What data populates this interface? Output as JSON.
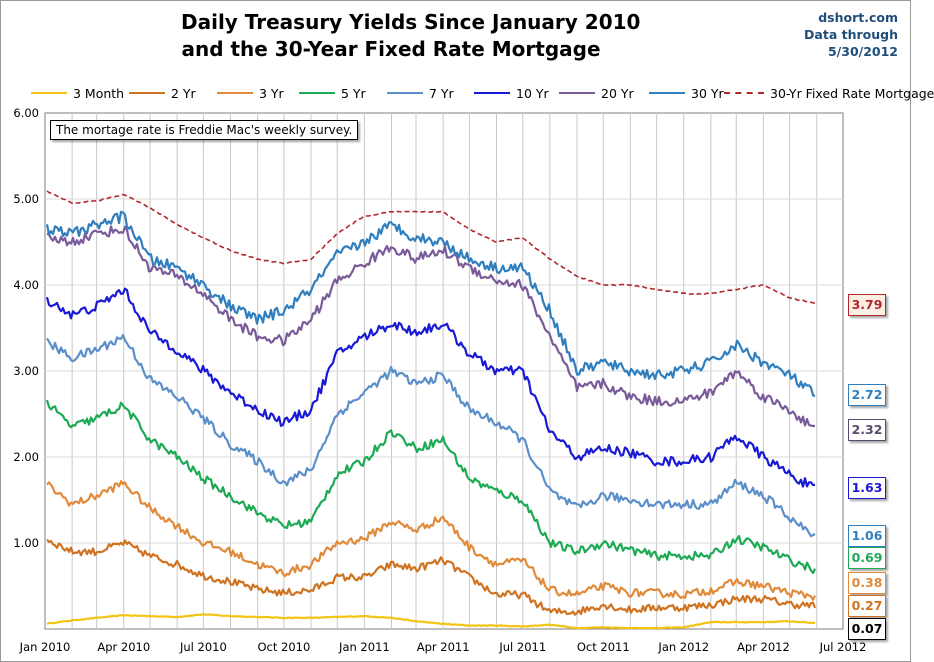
{
  "header": {
    "title_line1": "Daily Treasury Yields Since January 2010",
    "title_line2": "and the 30-Year Fixed Rate Mortgage",
    "source_line1": "dshort.com",
    "source_line2": "Data through",
    "source_line3": "5/30/2012"
  },
  "note": "The mortage rate is Freddie Mac's weekly survey.",
  "chart_data": {
    "type": "line",
    "title": "Daily Treasury Yields Since January 2010 and the 30-Year Fixed Rate Mortgage",
    "ylim": [
      0,
      6
    ],
    "y_ticks": [
      "6.00",
      "5.00",
      "4.00",
      "3.00",
      "2.00",
      "1.00"
    ],
    "y_tick_values": [
      6,
      5,
      4,
      3,
      2,
      1
    ],
    "x_ticks": [
      "Jan 2010",
      "Apr 2010",
      "Jul 2010",
      "Oct 2010",
      "Jan 2011",
      "Apr 2011",
      "Jul 2011",
      "Oct 2011",
      "Jan 2012",
      "Apr 2012",
      "Jul 2012"
    ],
    "x_tick_dates": [
      "2010-01-01",
      "2010-04-01",
      "2010-07-01",
      "2010-10-01",
      "2011-01-01",
      "2011-04-01",
      "2011-07-01",
      "2011-10-01",
      "2012-01-01",
      "2012-04-01",
      "2012-07-01"
    ],
    "grid": true,
    "legend_position": "top",
    "x": [
      "2010-01-01",
      "2010-02-01",
      "2010-03-01",
      "2010-04-01",
      "2010-05-01",
      "2010-06-01",
      "2010-07-01",
      "2010-08-01",
      "2010-09-01",
      "2010-10-01",
      "2010-11-01",
      "2010-12-01",
      "2011-01-01",
      "2011-02-01",
      "2011-03-01",
      "2011-04-01",
      "2011-05-01",
      "2011-06-01",
      "2011-07-01",
      "2011-08-01",
      "2011-09-01",
      "2011-10-01",
      "2011-11-01",
      "2011-12-01",
      "2012-01-01",
      "2012-02-01",
      "2012-03-01",
      "2012-04-01",
      "2012-05-01",
      "2012-05-30"
    ],
    "series": [
      {
        "name": "3 Month",
        "color": "#f2c413",
        "dash": "solid",
        "values": [
          0.06,
          0.1,
          0.13,
          0.16,
          0.15,
          0.14,
          0.17,
          0.15,
          0.14,
          0.13,
          0.13,
          0.14,
          0.15,
          0.13,
          0.09,
          0.06,
          0.04,
          0.04,
          0.03,
          0.05,
          0.01,
          0.02,
          0.01,
          0.01,
          0.02,
          0.08,
          0.08,
          0.08,
          0.09,
          0.07
        ]
      },
      {
        "name": "2 Yr",
        "color": "#d07321",
        "dash": "solid",
        "values": [
          1.05,
          0.9,
          0.9,
          1.0,
          0.85,
          0.75,
          0.62,
          0.55,
          0.46,
          0.42,
          0.45,
          0.6,
          0.6,
          0.75,
          0.7,
          0.8,
          0.6,
          0.4,
          0.4,
          0.2,
          0.2,
          0.28,
          0.22,
          0.25,
          0.25,
          0.28,
          0.35,
          0.35,
          0.29,
          0.27
        ]
      },
      {
        "name": "3 Yr",
        "color": "#e08a3a",
        "dash": "solid",
        "values": [
          1.7,
          1.45,
          1.55,
          1.7,
          1.4,
          1.2,
          1.0,
          0.9,
          0.75,
          0.65,
          0.75,
          1.0,
          1.05,
          1.25,
          1.15,
          1.3,
          0.95,
          0.75,
          0.8,
          0.45,
          0.4,
          0.5,
          0.42,
          0.42,
          0.4,
          0.45,
          0.55,
          0.5,
          0.42,
          0.38
        ]
      },
      {
        "name": "5 Yr",
        "color": "#1eaa55",
        "dash": "solid",
        "values": [
          2.65,
          2.35,
          2.45,
          2.6,
          2.2,
          2.0,
          1.75,
          1.55,
          1.35,
          1.2,
          1.25,
          1.8,
          1.95,
          2.3,
          2.1,
          2.2,
          1.75,
          1.6,
          1.5,
          1.0,
          0.9,
          1.0,
          0.92,
          0.85,
          0.85,
          0.85,
          1.05,
          0.95,
          0.8,
          0.69
        ]
      },
      {
        "name": "7 Yr",
        "color": "#5b8fc9",
        "dash": "solid",
        "values": [
          3.35,
          3.15,
          3.25,
          3.4,
          2.9,
          2.7,
          2.45,
          2.15,
          1.95,
          1.7,
          1.85,
          2.5,
          2.75,
          3.0,
          2.85,
          2.95,
          2.55,
          2.4,
          2.2,
          1.6,
          1.4,
          1.55,
          1.5,
          1.45,
          1.45,
          1.45,
          1.7,
          1.55,
          1.3,
          1.06
        ]
      },
      {
        "name": "10 Yr",
        "color": "#1a1ad6",
        "dash": "solid",
        "values": [
          3.85,
          3.65,
          3.75,
          3.95,
          3.45,
          3.25,
          3.0,
          2.75,
          2.55,
          2.4,
          2.55,
          3.2,
          3.4,
          3.55,
          3.45,
          3.55,
          3.2,
          3.0,
          3.0,
          2.3,
          2.0,
          2.1,
          2.05,
          1.95,
          1.95,
          2.0,
          2.25,
          2.0,
          1.8,
          1.63
        ]
      },
      {
        "name": "20 Yr",
        "color": "#7a5b9a",
        "dash": "solid",
        "values": [
          4.55,
          4.5,
          4.6,
          4.65,
          4.2,
          4.1,
          3.9,
          3.6,
          3.4,
          3.35,
          3.6,
          4.05,
          4.25,
          4.45,
          4.3,
          4.4,
          4.2,
          4.05,
          4.0,
          3.4,
          2.8,
          2.85,
          2.7,
          2.65,
          2.65,
          2.75,
          3.0,
          2.7,
          2.55,
          2.32
        ]
      },
      {
        "name": "30 Yr",
        "color": "#2f7fbf",
        "dash": "solid",
        "values": [
          4.65,
          4.6,
          4.7,
          4.8,
          4.3,
          4.2,
          4.0,
          3.75,
          3.6,
          3.7,
          3.95,
          4.35,
          4.5,
          4.7,
          4.55,
          4.5,
          4.3,
          4.2,
          4.2,
          3.7,
          3.0,
          3.1,
          3.0,
          2.95,
          3.0,
          3.1,
          3.3,
          3.1,
          2.95,
          2.72
        ]
      },
      {
        "name": "30-Yr Fixed Rate Mortgage",
        "color": "#b0282c",
        "dash": "dashed",
        "values": [
          5.1,
          4.95,
          4.98,
          5.05,
          4.9,
          4.7,
          4.55,
          4.4,
          4.3,
          4.25,
          4.3,
          4.6,
          4.8,
          4.85,
          4.85,
          4.85,
          4.65,
          4.5,
          4.55,
          4.3,
          4.1,
          4.0,
          4.0,
          3.95,
          3.9,
          3.9,
          3.95,
          4.0,
          3.85,
          3.79
        ]
      }
    ],
    "end_labels": [
      {
        "text": "3.79",
        "value": 3.79,
        "color": "#b0282c",
        "bg": "#fbeee4"
      },
      {
        "text": "2.72",
        "value": 2.72,
        "color": "#2f7fbf",
        "bg": "#ffffff"
      },
      {
        "text": "2.32",
        "value": 2.32,
        "color": "#5a4a70",
        "bg": "#ffffff"
      },
      {
        "text": "1.63",
        "value": 1.63,
        "color": "#1a1ad6",
        "bg": "#ffffff"
      },
      {
        "text": "1.06",
        "value": 1.06,
        "color": "#2f7fbf",
        "bg": "#ffffff"
      },
      {
        "text": "0.69",
        "value": 0.69,
        "color": "#1eaa55",
        "bg": "#ffffff"
      },
      {
        "text": "0.38",
        "value": 0.38,
        "color": "#e08a3a",
        "bg": "#ffffff"
      },
      {
        "text": "0.27",
        "value": 0.27,
        "color": "#d07321",
        "bg": "#ffffff"
      },
      {
        "text": "0.07",
        "value": 0.07,
        "color": "#000000",
        "bg": "#ffffff"
      }
    ]
  }
}
